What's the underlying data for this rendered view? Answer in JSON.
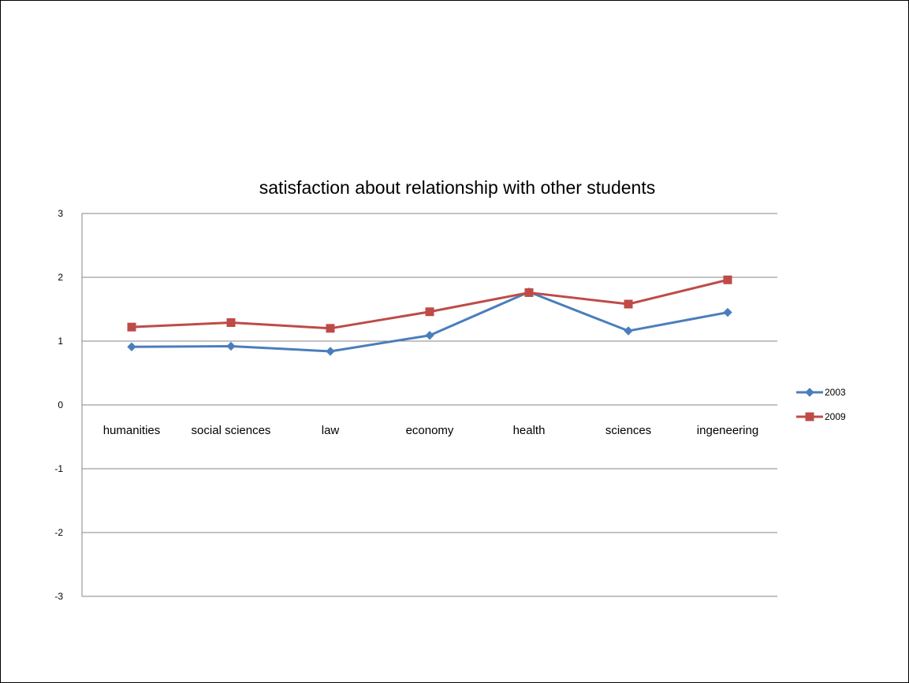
{
  "chart_data": {
    "type": "line",
    "title": "satisfaction about relationship with other students",
    "xlabel": "",
    "ylabel": "",
    "categories": [
      "humanities",
      "social sciences",
      "law",
      "economy",
      "health",
      "sciences",
      "ingeneering"
    ],
    "ylim": [
      -3,
      3
    ],
    "yticks": [
      "3",
      "2",
      "1",
      "0",
      "-1",
      "-2",
      "-3"
    ],
    "grid": true,
    "legend_position": "right",
    "series": [
      {
        "name": "2003",
        "color": "#4a7ebb",
        "marker": "diamond",
        "values": [
          0.91,
          0.92,
          0.84,
          1.09,
          1.77,
          1.16,
          1.45
        ]
      },
      {
        "name": "2009",
        "color": "#be4b48",
        "marker": "square",
        "values": [
          1.22,
          1.29,
          1.2,
          1.46,
          1.76,
          1.58,
          1.96
        ]
      }
    ]
  }
}
